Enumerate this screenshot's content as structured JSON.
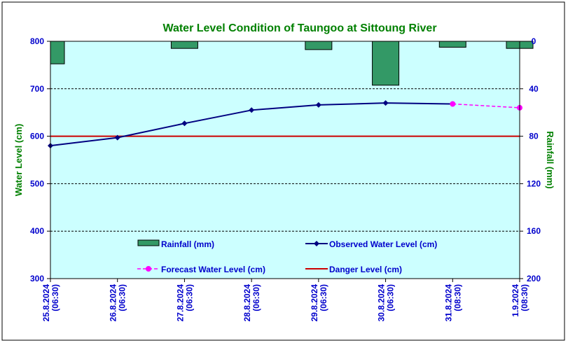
{
  "chart_data": {
    "type": "line",
    "title": "Water Level Condition of Taungoo at  Sittoung River",
    "ylabel": "Water Level (cm)",
    "y2label": "Rainfall (mm)",
    "ylim": [
      300,
      800
    ],
    "y2lim": [
      0,
      200
    ],
    "y2_inverted": true,
    "yticks": [
      300,
      400,
      500,
      600,
      700,
      800
    ],
    "y2ticks": [
      0,
      40,
      80,
      120,
      160,
      200
    ],
    "grid": true,
    "categories": [
      [
        "25.8.2024",
        "(06:30)"
      ],
      [
        "26.8.2024",
        "(06:30)"
      ],
      [
        "27.8.2024",
        "(06:30)"
      ],
      [
        "28.8.2024",
        "(06:30)"
      ],
      [
        "29.8.2024",
        "(06:30)"
      ],
      [
        "30.8.2024",
        "(06:30)"
      ],
      [
        "31.8.2024",
        "(08:30)"
      ],
      [
        "1.9.2024",
        "(08:30)"
      ]
    ],
    "rainfall": {
      "name": "Rainfall (mm)",
      "color": "#339966",
      "values": [
        19,
        null,
        6,
        null,
        7,
        37,
        5,
        6
      ]
    },
    "observed": {
      "name": "Observed Water Level (cm)",
      "color": "#000080",
      "values": [
        580,
        597,
        627,
        655,
        666,
        670,
        668,
        null
      ]
    },
    "forecast": {
      "name": "Forecast Water Level (cm)",
      "color": "#ff00ff",
      "values": [
        null,
        null,
        null,
        null,
        null,
        null,
        668,
        660
      ]
    },
    "danger": {
      "name": "Danger Level (cm)",
      "color": "#cc0000",
      "value": 600
    },
    "colors": {
      "title": "#008000",
      "axis_label": "#008000",
      "tick": "#0000cc",
      "plot_bg": "#ccffff"
    }
  }
}
